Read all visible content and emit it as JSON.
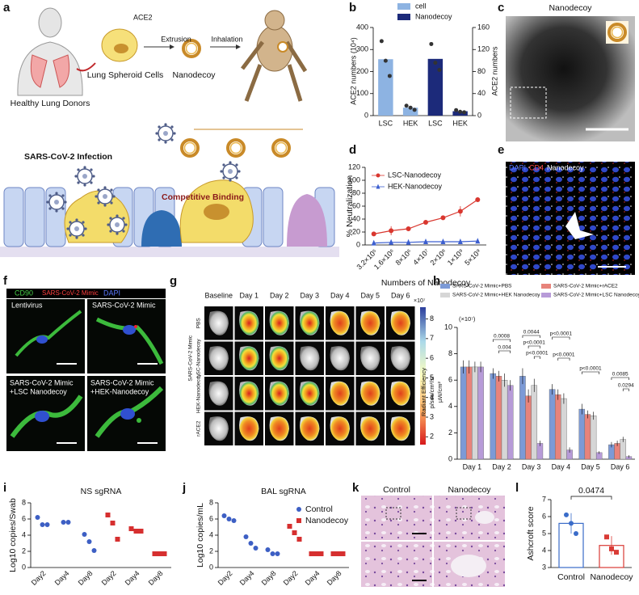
{
  "panel_letters": [
    "a",
    "b",
    "c",
    "d",
    "e",
    "f",
    "g",
    "h",
    "i",
    "j",
    "k",
    "l"
  ],
  "schematic": {
    "ace2": "ACE2",
    "extrusion": "Extrusion",
    "inhalation": "Inhalation",
    "cells": "Lung Spheroid Cells",
    "nanodecoy": "Nanodecoy",
    "donors": "Healthy Lung Donors",
    "infection": "SARS-CoV-2 Infection",
    "binding": "Competitive Binding"
  },
  "tem": {
    "title": "Nanodecoy"
  },
  "fluorescence": {
    "channels": [
      "DAPI",
      "CD4",
      "Nanodecoy"
    ]
  },
  "cell_images": {
    "channels": [
      "CD90",
      "SARS-CoV-2 Mimic",
      "DAPI"
    ],
    "conditions": [
      [
        "Lentivirus"
      ],
      [
        "SARS-CoV-2 Mimic"
      ],
      [
        "SARS-CoV-2 Mimic",
        "+LSC Nanodecoy"
      ],
      [
        "SARS-CoV-2 Mimic",
        "+HEK-Nanodecoy"
      ]
    ]
  },
  "ivis": {
    "columns": [
      "Baseline",
      "Day 1",
      "Day 2",
      "Day 3",
      "Day 4",
      "Day 5",
      "Day 6"
    ],
    "group": "SARS-CoV-2 Mimic",
    "rows": [
      "PBS",
      "LSC-Nanodecoy",
      "HEK-Nanodecoy",
      "rACE2"
    ],
    "colorbar": {
      "lim": [
        1.6,
        8.6
      ],
      "ticks": [
        2,
        3,
        4,
        5,
        6,
        7,
        8
      ],
      "unit": "×10⁷"
    }
  },
  "histology": {
    "columns": [
      "Control",
      "Nanodecoy"
    ]
  },
  "chart_data": [
    {
      "type": "bar",
      "categories": [
        "LSC",
        "HEK",
        "LSC",
        "HEK"
      ],
      "ylabel": "ACE2 numbers (10⁴)",
      "y2label": "ACE2 numbers",
      "ylim": [
        0,
        400
      ],
      "yticks": [
        0,
        100,
        200,
        300,
        400
      ],
      "y2lim": [
        0,
        160
      ],
      "y2ticks": [
        0,
        40,
        80,
        120,
        160
      ],
      "series": [
        {
          "name": "cell",
          "color": "#8db3e2",
          "values": [
            256,
            36,
            null,
            null
          ],
          "points": [
            [
              338,
              249,
              180
            ],
            [
              45,
              36,
              26
            ],
            null,
            null
          ]
        },
        {
          "name": "Nanodecoy",
          "color": "#1c2a7a",
          "axis": "y2",
          "values": [
            null,
            null,
            103,
            8
          ],
          "points": [
            null,
            null,
            [
              130,
              96,
              83
            ],
            [
              10,
              7,
              6
            ]
          ]
        }
      ]
    },
    {
      "type": "line",
      "xlabel": "Numbers of Nanodecoy",
      "ylabel": "% Neutralization",
      "categories": [
        "3.2×10⁵",
        "1.6×10⁶",
        "8×10⁶",
        "4×10⁷",
        "2×10⁸",
        "1×10⁹",
        "5×10⁹"
      ],
      "ylim": [
        0,
        120
      ],
      "yticks": [
        0,
        20,
        40,
        60,
        80,
        100,
        120
      ],
      "series": [
        {
          "name": "LSC-Nanodecoy",
          "color": "#d9372f",
          "marker": "circle",
          "values": [
            17,
            22,
            25,
            35,
            42,
            52,
            70
          ],
          "errors": [
            2,
            7,
            2,
            2,
            2,
            8,
            3
          ]
        },
        {
          "name": "HEK-Nanodecoy",
          "color": "#3c5fd0",
          "marker": "triangle",
          "values": [
            3,
            4,
            4,
            5,
            5,
            5,
            6
          ],
          "errors": [
            1,
            1,
            1,
            3,
            1,
            1,
            2
          ]
        }
      ]
    },
    {
      "type": "bar",
      "categories": [
        "Day 1",
        "Day 2",
        "Day 3",
        "Day 4",
        "Day 5",
        "Day 6"
      ],
      "ylabel": [
        "Radiant Efficiency",
        "p/sec/cm²/sr",
        "µW/cm²"
      ],
      "yunit": "(×10⁷)",
      "ylim": [
        0,
        10
      ],
      "yticks": [
        0,
        2,
        4,
        6,
        8,
        10
      ],
      "series": [
        {
          "name": "SARS-CoV-2 Mimic+PBS",
          "color": "#7c9ad6",
          "values": [
            7.0,
            6.5,
            6.3,
            5.3,
            3.8,
            1.1
          ],
          "errors": [
            0.5,
            0.4,
            0.6,
            0.4,
            0.4,
            0.2
          ]
        },
        {
          "name": "SARS-CoV-2 Mimic+rACE2",
          "color": "#e7837b",
          "values": [
            7.0,
            6.3,
            4.8,
            4.9,
            3.4,
            1.2
          ],
          "errors": [
            0.5,
            0.4,
            0.5,
            0.4,
            0.3,
            0.2
          ]
        },
        {
          "name": "SARS-CoV-2 Mimic+HEK Nanodecoy",
          "color": "#d6d6d6",
          "values": [
            7.0,
            6.0,
            5.6,
            4.6,
            3.3,
            1.5
          ],
          "errors": [
            0.4,
            0.5,
            0.5,
            0.4,
            0.3,
            0.2
          ]
        },
        {
          "name": "SARS-CoV-2 Mimic+LSC Nanodecoy",
          "color": "#b79bd8",
          "values": [
            7.0,
            5.6,
            1.2,
            0.7,
            0.5,
            0.2
          ],
          "errors": [
            0.4,
            0.4,
            0.2,
            0.2,
            0.1,
            0.1
          ]
        }
      ],
      "annotations": [
        "0.0008",
        "0.004",
        "0.0044",
        "p<0.0001",
        "p<0.0001",
        "p<0.0001",
        "p<0.0001",
        "p<0.0001",
        "0.0085",
        "0.0294"
      ]
    },
    {
      "type": "strip",
      "title": "NS sgRNA",
      "ylabel": "Log10 copies/Swab",
      "categories": [
        "Day2",
        "Day4",
        "Day8",
        "Day2",
        "Day4",
        "Day8"
      ],
      "ylim": [
        0,
        8
      ],
      "yticks": [
        0,
        2,
        4,
        6,
        8
      ],
      "series": [
        {
          "color": "#3d5fc4",
          "marker": "circle",
          "values": [
            [
              6.2,
              5.3,
              5.3
            ],
            [
              5.6,
              5.6
            ],
            [
              4.1,
              3.2,
              2.1
            ],
            null,
            null,
            null
          ]
        },
        {
          "color": "#d62f2f",
          "marker": "square",
          "values": [
            null,
            null,
            null,
            [
              6.5,
              5.5,
              3.5
            ],
            [
              4.8,
              4.5,
              4.5
            ],
            [
              1.7,
              1.7,
              1.7
            ]
          ]
        }
      ]
    },
    {
      "type": "strip",
      "title": "BAL sgRNA",
      "ylabel": "Log10 copies/mL",
      "categories": [
        "Day2",
        "Day4",
        "Day8",
        "Day2",
        "Day4",
        "Day8"
      ],
      "ylim": [
        0,
        8
      ],
      "yticks": [
        0,
        2,
        4,
        6,
        8
      ],
      "series": [
        {
          "name": "Control",
          "color": "#3d5fc4",
          "marker": "circle",
          "values": [
            [
              6.4,
              6.0,
              5.8
            ],
            [
              3.8,
              3.0,
              2.4
            ],
            [
              2.2,
              1.7,
              1.7
            ],
            null,
            null,
            null
          ]
        },
        {
          "name": "Nanodecoy",
          "color": "#d62f2f",
          "marker": "square",
          "values": [
            null,
            null,
            null,
            [
              5.1,
              4.3,
              3.5
            ],
            [
              1.7,
              1.7,
              1.7
            ],
            [
              1.7,
              1.7,
              1.7
            ]
          ]
        }
      ]
    },
    {
      "type": "dotbar",
      "ylabel": "Ashcroft score",
      "categories": [
        "Control",
        "Nanodecoy"
      ],
      "ylim": [
        3,
        7
      ],
      "yticks": [
        3,
        4,
        5,
        6,
        7
      ],
      "colors": [
        "#3a6cc9",
        "#d93b36"
      ],
      "values": [
        5.6,
        4.3
      ],
      "errors": [
        0.6,
        0.55
      ],
      "points": [
        [
          6.1,
          5.6,
          5.0
        ],
        [
          4.8,
          4.1,
          3.9
        ]
      ],
      "annotation": "0.0474"
    }
  ]
}
